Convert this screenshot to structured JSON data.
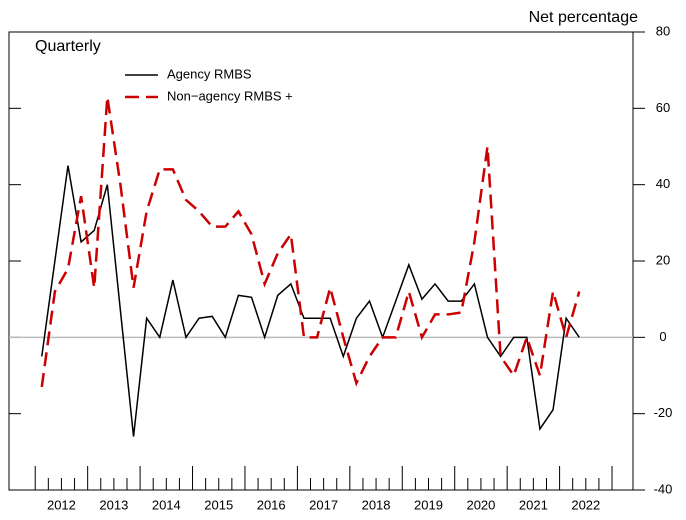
{
  "chart_data": {
    "type": "line",
    "title": "Quarterly",
    "y_axis_label": "Net percentage",
    "x": [
      2012.125,
      2012.375,
      2012.625,
      2012.875,
      2013.125,
      2013.375,
      2013.625,
      2013.875,
      2014.125,
      2014.375,
      2014.625,
      2014.875,
      2015.125,
      2015.375,
      2015.625,
      2015.875,
      2016.125,
      2016.375,
      2016.625,
      2016.875,
      2017.125,
      2017.375,
      2017.625,
      2017.875,
      2018.125,
      2018.375,
      2018.625,
      2018.875,
      2019.125,
      2019.375,
      2019.625,
      2019.875,
      2020.125,
      2020.375,
      2020.625,
      2020.875,
      2021.125,
      2021.375,
      2021.625,
      2021.875,
      2022.125,
      2022.375
    ],
    "series": [
      {
        "name": "Agency RMBS",
        "color": "#000000",
        "dash": "solid",
        "values": [
          -5,
          20,
          45,
          25,
          28,
          40,
          7,
          -26,
          5,
          0,
          15,
          0,
          5,
          5.5,
          0,
          11,
          10.5,
          0,
          11,
          14,
          5,
          5,
          5,
          -5,
          5,
          9.5,
          0,
          9.5,
          19,
          10,
          14,
          9.5,
          9.5,
          14,
          0,
          -5,
          0,
          0,
          -24,
          -19,
          5,
          0
        ]
      },
      {
        "name": "Non−agency RMBS +",
        "color": "#cc0000",
        "dash": "dashed",
        "values": [
          -13,
          12,
          18,
          37,
          13,
          63,
          40,
          13,
          33,
          44,
          44,
          36,
          33,
          29,
          29,
          33,
          27,
          14,
          22,
          27,
          0,
          0,
          13,
          0,
          -12,
          -5,
          0,
          0,
          12,
          0,
          6,
          6,
          6.5,
          25,
          50,
          -5,
          -10,
          0,
          -10,
          12,
          0,
          12
        ]
      }
    ],
    "xlim": [
      2011.5,
      2023.4
    ],
    "x_major_ticks": [
      2012,
      2013,
      2014,
      2015,
      2016,
      2017,
      2018,
      2019,
      2020,
      2021,
      2022,
      2023
    ],
    "xticks": [
      {
        "value": 2012.5,
        "label": "2012"
      },
      {
        "value": 2013.5,
        "label": "2013"
      },
      {
        "value": 2014.5,
        "label": "2014"
      },
      {
        "value": 2015.5,
        "label": "2015"
      },
      {
        "value": 2016.5,
        "label": "2016"
      },
      {
        "value": 2017.5,
        "label": "2017"
      },
      {
        "value": 2018.5,
        "label": "2018"
      },
      {
        "value": 2019.5,
        "label": "2019"
      },
      {
        "value": 2020.5,
        "label": "2020"
      },
      {
        "value": 2021.5,
        "label": "2021"
      },
      {
        "value": 2022.5,
        "label": "2022"
      }
    ],
    "ylim": [
      -40,
      80
    ],
    "yticks": [
      -40,
      -20,
      0,
      20,
      40,
      60,
      80
    ],
    "zero_line_color": "#bbbbbb",
    "legend": "top-left"
  }
}
